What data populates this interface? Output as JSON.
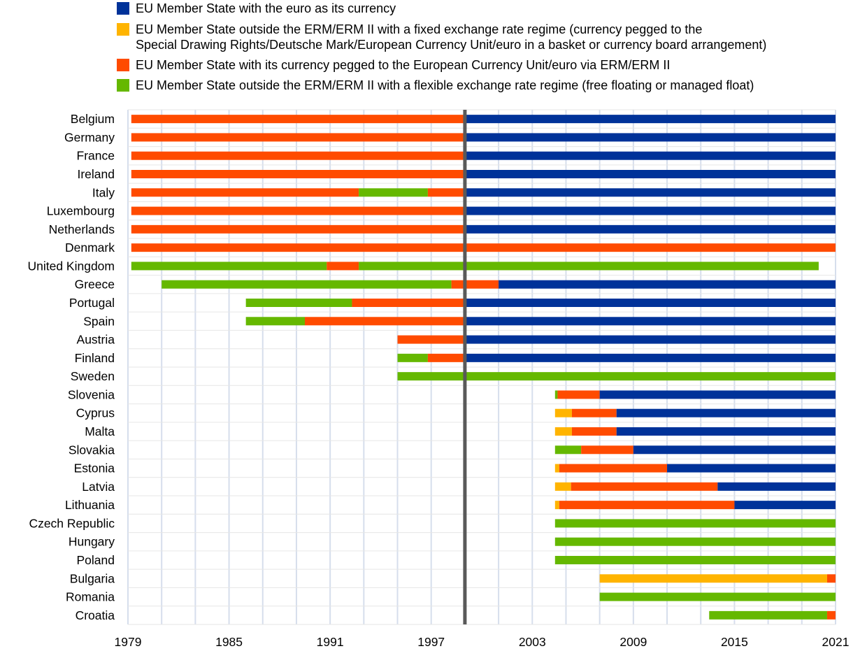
{
  "chart_data": {
    "type": "bar",
    "orientation": "horizontal-timeline",
    "xlim": [
      1979,
      2021
    ],
    "x_ticks": [
      "1979",
      "1985",
      "1991",
      "1997",
      "2003",
      "2009",
      "2015",
      "2021"
    ],
    "marker_year": 1999,
    "legend_placement": "top",
    "colors": {
      "euro": "#003299",
      "fixed": "#FFB400",
      "erm": "#FF4B00",
      "float": "#65B800"
    },
    "legend": [
      {
        "key": "euro",
        "lines": [
          "EU Member State with the euro as its currency"
        ]
      },
      {
        "key": "fixed",
        "lines": [
          "EU Member State outside the ERM/ERM II with a fixed exchange rate regime (currency pegged to the",
          "Special Drawing Rights/Deutsche Mark/European Currency Unit/euro in a basket or currency board arrangement)"
        ]
      },
      {
        "key": "erm",
        "lines": [
          "EU Member State with its currency pegged to the European Currency Unit/euro via ERM/ERM II"
        ]
      },
      {
        "key": "float",
        "lines": [
          "EU Member State outside the ERM/ERM II with a flexible exchange rate regime (free floating or managed float)"
        ]
      }
    ],
    "countries": [
      {
        "name": "Belgium",
        "segments": [
          [
            1979.2,
            1999,
            "erm"
          ],
          [
            1999,
            2021,
            "euro"
          ]
        ]
      },
      {
        "name": "Germany",
        "segments": [
          [
            1979.2,
            1999,
            "erm"
          ],
          [
            1999,
            2021,
            "euro"
          ]
        ]
      },
      {
        "name": "France",
        "segments": [
          [
            1979.2,
            1999,
            "erm"
          ],
          [
            1999,
            2021,
            "euro"
          ]
        ]
      },
      {
        "name": "Ireland",
        "segments": [
          [
            1979.2,
            1999,
            "erm"
          ],
          [
            1999,
            2021,
            "euro"
          ]
        ]
      },
      {
        "name": "Italy",
        "segments": [
          [
            1979.2,
            1992.7,
            "erm"
          ],
          [
            1992.7,
            1996.8,
            "float"
          ],
          [
            1996.8,
            1999,
            "erm"
          ],
          [
            1999,
            2021,
            "euro"
          ]
        ]
      },
      {
        "name": "Luxembourg",
        "segments": [
          [
            1979.2,
            1999,
            "erm"
          ],
          [
            1999,
            2021,
            "euro"
          ]
        ]
      },
      {
        "name": "Netherlands",
        "segments": [
          [
            1979.2,
            1999,
            "erm"
          ],
          [
            1999,
            2021,
            "euro"
          ]
        ]
      },
      {
        "name": "Denmark",
        "segments": [
          [
            1979.2,
            2021,
            "erm"
          ]
        ]
      },
      {
        "name": "United Kingdom",
        "segments": [
          [
            1979.2,
            1990.8,
            "float"
          ],
          [
            1990.8,
            1992.7,
            "erm"
          ],
          [
            1992.7,
            2020,
            "float"
          ]
        ]
      },
      {
        "name": "Greece",
        "segments": [
          [
            1981,
            1998.2,
            "float"
          ],
          [
            1998.2,
            2001,
            "erm"
          ],
          [
            2001,
            2021,
            "euro"
          ]
        ]
      },
      {
        "name": "Portugal",
        "segments": [
          [
            1986,
            1992.3,
            "float"
          ],
          [
            1992.3,
            1999,
            "erm"
          ],
          [
            1999,
            2021,
            "euro"
          ]
        ]
      },
      {
        "name": "Spain",
        "segments": [
          [
            1986,
            1989.5,
            "float"
          ],
          [
            1989.5,
            1999,
            "erm"
          ],
          [
            1999,
            2021,
            "euro"
          ]
        ]
      },
      {
        "name": "Austria",
        "segments": [
          [
            1995,
            1999,
            "erm"
          ],
          [
            1999,
            2021,
            "euro"
          ]
        ]
      },
      {
        "name": "Finland",
        "segments": [
          [
            1995,
            1996.8,
            "float"
          ],
          [
            1996.8,
            1999,
            "erm"
          ],
          [
            1999,
            2021,
            "euro"
          ]
        ]
      },
      {
        "name": "Sweden",
        "segments": [
          [
            1995,
            2021,
            "float"
          ]
        ]
      },
      {
        "name": "Slovenia",
        "segments": [
          [
            2004.35,
            2004.5,
            "float"
          ],
          [
            2004.5,
            2007,
            "erm"
          ],
          [
            2007,
            2021,
            "euro"
          ]
        ]
      },
      {
        "name": "Cyprus",
        "segments": [
          [
            2004.35,
            2005.35,
            "fixed"
          ],
          [
            2005.35,
            2008,
            "erm"
          ],
          [
            2008,
            2021,
            "euro"
          ]
        ]
      },
      {
        "name": "Malta",
        "segments": [
          [
            2004.35,
            2005.35,
            "fixed"
          ],
          [
            2005.35,
            2008,
            "erm"
          ],
          [
            2008,
            2021,
            "euro"
          ]
        ]
      },
      {
        "name": "Slovakia",
        "segments": [
          [
            2004.35,
            2005.9,
            "float"
          ],
          [
            2005.9,
            2009,
            "erm"
          ],
          [
            2009,
            2021,
            "euro"
          ]
        ]
      },
      {
        "name": "Estonia",
        "segments": [
          [
            2004.35,
            2004.6,
            "fixed"
          ],
          [
            2004.6,
            2011,
            "erm"
          ],
          [
            2011,
            2021,
            "euro"
          ]
        ]
      },
      {
        "name": "Latvia",
        "segments": [
          [
            2004.35,
            2005.3,
            "fixed"
          ],
          [
            2005.3,
            2014,
            "erm"
          ],
          [
            2014,
            2021,
            "euro"
          ]
        ]
      },
      {
        "name": "Lithuania",
        "segments": [
          [
            2004.35,
            2004.6,
            "fixed"
          ],
          [
            2004.6,
            2015,
            "erm"
          ],
          [
            2015,
            2021,
            "euro"
          ]
        ]
      },
      {
        "name": "Czech Republic",
        "segments": [
          [
            2004.35,
            2021,
            "float"
          ]
        ]
      },
      {
        "name": "Hungary",
        "segments": [
          [
            2004.35,
            2021,
            "float"
          ]
        ]
      },
      {
        "name": "Poland",
        "segments": [
          [
            2004.35,
            2021,
            "float"
          ]
        ]
      },
      {
        "name": "Bulgaria",
        "segments": [
          [
            2007,
            2020.5,
            "fixed"
          ],
          [
            2020.5,
            2021,
            "erm"
          ]
        ]
      },
      {
        "name": "Romania",
        "segments": [
          [
            2007,
            2021,
            "float"
          ]
        ]
      },
      {
        "name": "Croatia",
        "segments": [
          [
            2013.5,
            2020.5,
            "float"
          ],
          [
            2020.5,
            2021,
            "erm"
          ]
        ]
      }
    ]
  }
}
